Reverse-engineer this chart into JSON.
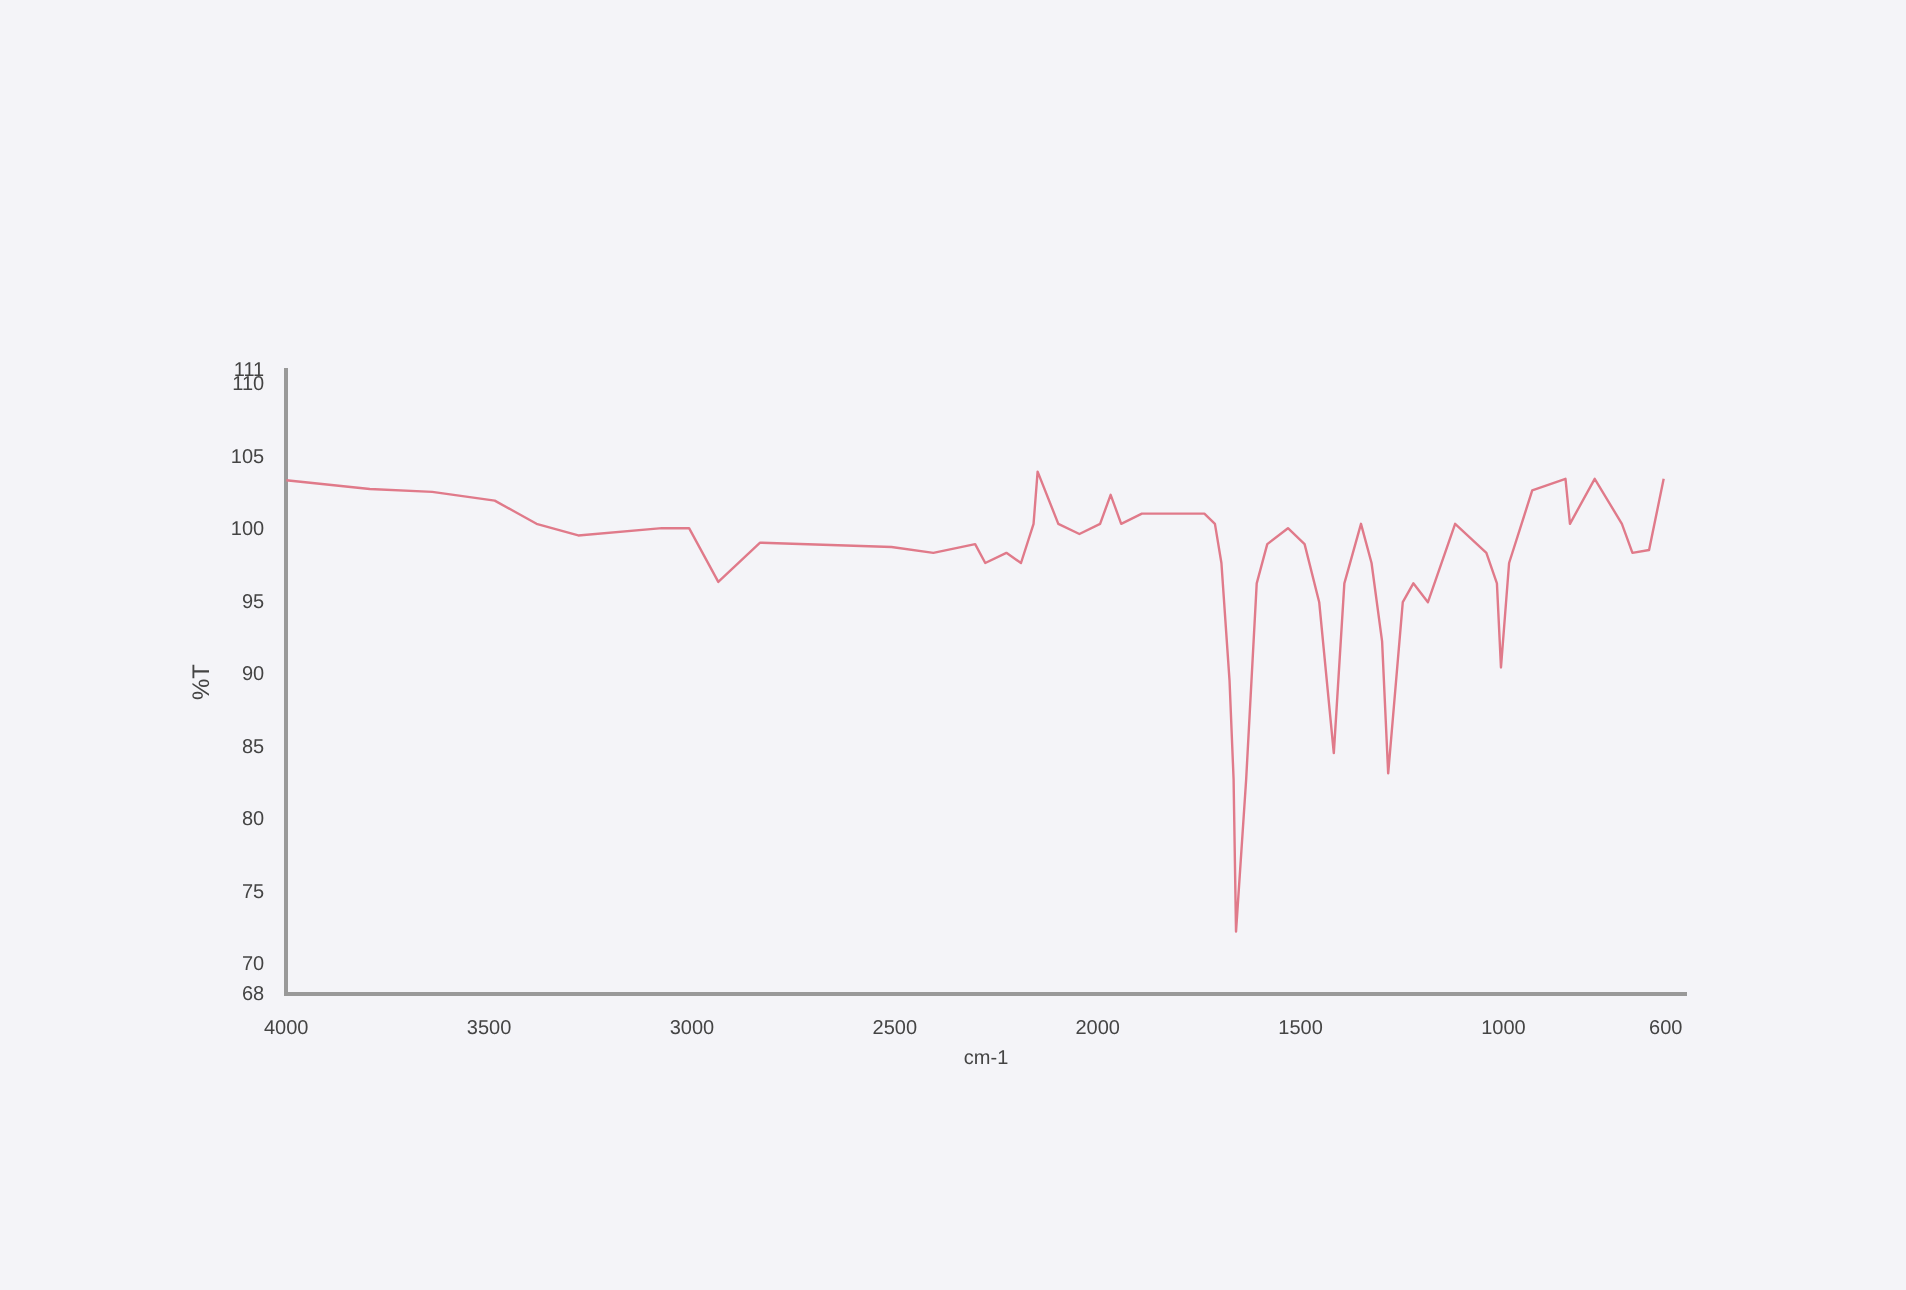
{
  "chart_data": {
    "type": "line",
    "xlabel": "cm-1",
    "ylabel": "%T",
    "x": [
      4000,
      3794,
      3640,
      3486,
      3383,
      3280,
      3074,
      3007,
      2935,
      2832,
      2508,
      2405,
      2302,
      2277,
      2225,
      2189,
      2158,
      2148,
      2097,
      2045,
      1994,
      1968,
      1942,
      1891,
      1737,
      1711,
      1695,
      1675,
      1665,
      1659,
      1634,
      1608,
      1582,
      1531,
      1490,
      1454,
      1418,
      1392,
      1351,
      1325,
      1299,
      1284,
      1248,
      1222,
      1186,
      1119,
      1042,
      1016,
      1006,
      986,
      929,
      847,
      836,
      775,
      708,
      682,
      641,
      605
    ],
    "series": [
      {
        "color": "#e07a8a",
        "values": [
          103.4,
          102.8,
          102.6,
          102.0,
          100.4,
          99.6,
          100.1,
          100.1,
          96.4,
          99.1,
          98.8,
          98.4,
          99.0,
          97.7,
          98.4,
          97.7,
          100.4,
          104.0,
          100.4,
          99.7,
          100.4,
          102.4,
          100.4,
          101.1,
          101.1,
          100.4,
          97.7,
          89.6,
          82.8,
          72.3,
          82.8,
          96.3,
          99.0,
          100.1,
          99.0,
          95.0,
          84.6,
          96.3,
          100.4,
          97.7,
          92.3,
          83.2,
          95.0,
          96.3,
          95.0,
          100.4,
          98.4,
          96.3,
          90.5,
          97.7,
          102.7,
          103.5,
          100.4,
          103.5,
          100.4,
          98.4,
          98.6,
          103.5
        ]
      }
    ],
    "xlim": [
      4000,
      550
    ],
    "xticks": [
      4000,
      3500,
      3000,
      2500,
      2000,
      1500,
      1000,
      600
    ],
    "ylim": [
      68,
      111
    ],
    "yticks": [
      68,
      70,
      75,
      80,
      85,
      90,
      95,
      100,
      105,
      110,
      111
    ],
    "grid": false,
    "legend": false,
    "marker": "none",
    "line_style": "solid"
  }
}
